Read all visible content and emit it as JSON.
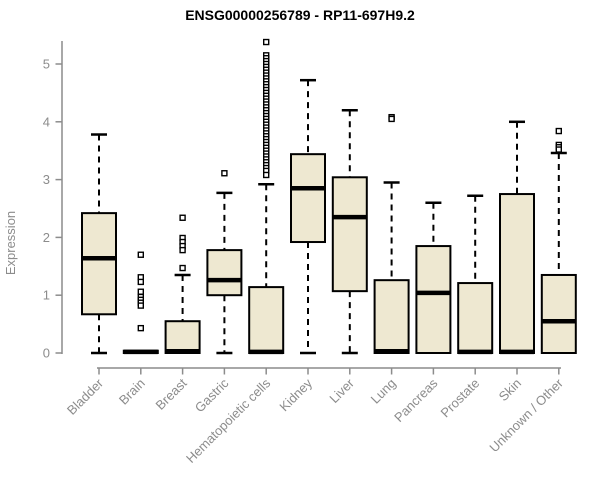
{
  "page": {
    "background": "#ffffff"
  },
  "chart_data": {
    "type": "boxplot",
    "title": "ENSG00000256789 - RP11-697H9.2",
    "xlabel": "",
    "ylabel": "Expression",
    "ylim": [
      0,
      5.45
    ],
    "yticks": [
      0,
      1,
      2,
      3,
      4,
      5
    ],
    "grid": false,
    "legend": "none",
    "colors": {
      "box_fill": "#eee8d1",
      "line": "#000000",
      "axis": "#8c8c8c",
      "title": "#000000",
      "background": "#ffffff"
    },
    "categories": [
      "Bladder",
      "Brain",
      "Breast",
      "Gastric",
      "Hematopoietic cells",
      "Kidney",
      "Liver",
      "Lung",
      "Pancreas",
      "Prostate",
      "Skin",
      "Unknown / Other"
    ],
    "boxes": [
      {
        "category": "Bladder",
        "whisker_low": 0,
        "q1": 0.67,
        "median": 1.64,
        "q3": 2.42,
        "whisker_high": 3.78,
        "outliers": []
      },
      {
        "category": "Brain",
        "whisker_low": 0,
        "q1": 0,
        "median": 0.02,
        "q3": 0.04,
        "whisker_high": 0.04,
        "outliers": [
          1.7,
          1.31,
          1.23,
          1.06,
          0.97,
          0.92,
          0.87,
          0.82,
          0.43
        ]
      },
      {
        "category": "Breast",
        "whisker_low": 0,
        "q1": 0,
        "median": 0.03,
        "q3": 0.55,
        "whisker_high": 1.35,
        "outliers": [
          2.34,
          1.99,
          1.92,
          1.85,
          1.78,
          1.47
        ]
      },
      {
        "category": "Gastric",
        "whisker_low": 0,
        "q1": 1.0,
        "median": 1.26,
        "q3": 1.78,
        "whisker_high": 2.77,
        "outliers": [
          3.11
        ]
      },
      {
        "category": "Hematopoietic cells",
        "whisker_low": 0,
        "q1": 0,
        "median": 0.02,
        "q3": 1.14,
        "whisker_high": 2.92,
        "outliers": [
          5.38,
          5.15,
          5.1,
          5.05,
          5.0,
          4.95,
          4.9,
          4.85,
          4.8,
          4.75,
          4.7,
          4.65,
          4.6,
          4.55,
          4.5,
          4.45,
          4.4,
          4.35,
          4.3,
          4.25,
          4.2,
          4.15,
          4.1,
          4.05,
          4.0,
          3.95,
          3.9,
          3.85,
          3.8,
          3.75,
          3.7,
          3.65,
          3.6,
          3.55,
          3.5,
          3.45,
          3.4,
          3.35,
          3.3,
          3.25,
          3.2,
          3.15,
          3.08
        ]
      },
      {
        "category": "Kidney",
        "whisker_low": 0,
        "q1": 1.92,
        "median": 2.85,
        "q3": 3.44,
        "whisker_high": 4.72,
        "outliers": []
      },
      {
        "category": "Liver",
        "whisker_low": 0,
        "q1": 1.07,
        "median": 2.35,
        "q3": 3.04,
        "whisker_high": 4.2,
        "outliers": []
      },
      {
        "category": "Lung",
        "whisker_low": 0,
        "q1": 0,
        "median": 0.03,
        "q3": 1.26,
        "whisker_high": 2.95,
        "outliers": [
          4.08,
          4.05
        ]
      },
      {
        "category": "Pancreas",
        "whisker_low": 0,
        "q1": 0,
        "median": 1.04,
        "q3": 1.85,
        "whisker_high": 2.6,
        "outliers": []
      },
      {
        "category": "Prostate",
        "whisker_low": 0,
        "q1": 0,
        "median": 0.02,
        "q3": 1.21,
        "whisker_high": 2.72,
        "outliers": []
      },
      {
        "category": "Skin",
        "whisker_low": 0,
        "q1": 0,
        "median": 0.02,
        "q3": 2.75,
        "whisker_high": 4.0,
        "outliers": []
      },
      {
        "category": "Unknown / Other",
        "whisker_low": 0,
        "q1": 0,
        "median": 0.55,
        "q3": 1.35,
        "whisker_high": 3.46,
        "outliers": [
          3.84,
          3.6,
          3.56,
          3.52
        ]
      }
    ]
  }
}
